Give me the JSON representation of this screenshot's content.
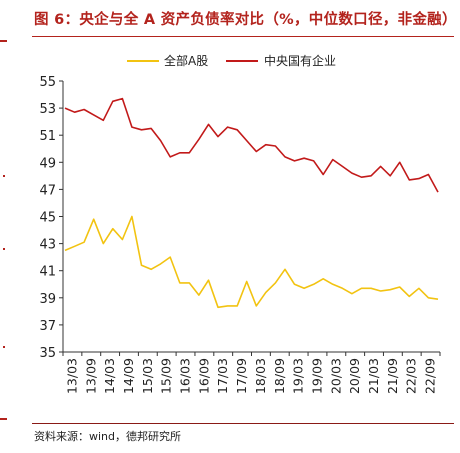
{
  "header": {
    "title": "图 6：央企与全 A 资产负债率对比（%，中位数口径，非金融）"
  },
  "footer": {
    "source": "资料来源：wind，德邦研究所"
  },
  "colors": {
    "brand_red": "#b3231d",
    "series_yellow": "#f2c311",
    "series_red": "#c21a1a"
  },
  "chart_data": {
    "type": "line",
    "ylim": [
      35,
      55
    ],
    "yticks": [
      35,
      37,
      39,
      41,
      43,
      45,
      47,
      49,
      51,
      53,
      55
    ],
    "xticks": [
      "13/03",
      "13/09",
      "14/03",
      "14/09",
      "15/03",
      "15/09",
      "16/03",
      "16/09",
      "17/03",
      "17/09",
      "18/03",
      "18/09",
      "19/03",
      "19/09",
      "20/03",
      "20/09",
      "21/03",
      "21/09",
      "22/03",
      "22/09"
    ],
    "legend_position": "top",
    "grid": false,
    "series": [
      {
        "name": "全部A股",
        "color": "#f2c311",
        "values": [
          42.5,
          42.8,
          43.1,
          44.8,
          43.0,
          44.1,
          43.3,
          45.0,
          41.4,
          41.1,
          41.5,
          42.0,
          40.1,
          40.1,
          39.2,
          40.3,
          38.3,
          38.4,
          38.4,
          40.2,
          38.4,
          39.4,
          40.1,
          41.1,
          40.0,
          39.7,
          40.0,
          40.4,
          40.0,
          39.7,
          39.3,
          39.7,
          39.7,
          39.5,
          39.6,
          39.8,
          39.1,
          39.7,
          39.0,
          38.9
        ]
      },
      {
        "name": "中央国有企业",
        "color": "#c21a1a",
        "values": [
          53.0,
          52.7,
          52.9,
          52.5,
          52.1,
          53.5,
          53.7,
          51.6,
          51.4,
          51.5,
          50.6,
          49.4,
          49.7,
          49.7,
          50.7,
          51.8,
          50.9,
          51.6,
          51.4,
          50.6,
          49.8,
          50.3,
          50.2,
          49.4,
          49.1,
          49.3,
          49.1,
          48.1,
          49.2,
          48.7,
          48.2,
          47.9,
          48.0,
          48.7,
          48.0,
          49.0,
          47.7,
          47.8,
          48.1,
          46.8
        ]
      }
    ]
  }
}
